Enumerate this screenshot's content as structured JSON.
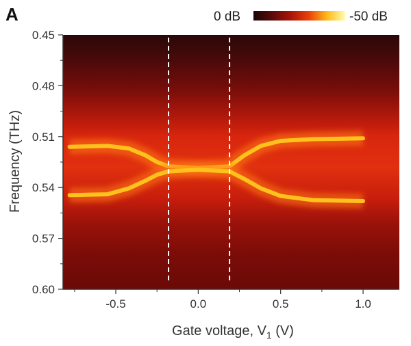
{
  "chart_data": {
    "type": "heatmap",
    "panel_label": "A",
    "xlabel": {
      "main": "Gate voltage, V",
      "subscript": "1",
      "unit": " (V)"
    },
    "ylabel": "Frequency (THz)",
    "xlim": [
      -0.82,
      1.22
    ],
    "ylim": [
      0.45,
      0.6
    ],
    "y_inverted": true,
    "x_ticks": [
      -0.5,
      0.0,
      0.5,
      1.0
    ],
    "x_tick_labels": [
      "-0.5",
      "0.0",
      "0.5",
      "1.0"
    ],
    "x_minor_ticks": [
      -0.75,
      -0.25,
      0.25,
      0.75
    ],
    "y_ticks": [
      0.45,
      0.48,
      0.51,
      0.54,
      0.57,
      0.6
    ],
    "y_tick_labels": [
      "0.45",
      "0.48",
      "0.51",
      "0.54",
      "0.57",
      "0.60"
    ],
    "y_minor_ticks": [
      0.465,
      0.495,
      0.525,
      0.555,
      0.585
    ],
    "colorbar": {
      "min_label": "0 dB",
      "max_label": "-50 dB",
      "colors": [
        "#1a0606",
        "#5a0a0a",
        "#a81408",
        "#e8400a",
        "#ffb818",
        "#ffffb0"
      ]
    },
    "dashed_lines_x": [
      -0.18,
      0.19
    ],
    "anticrossing": {
      "upper_branch": [
        {
          "x": -0.78,
          "y": 0.516
        },
        {
          "x": -0.55,
          "y": 0.5155
        },
        {
          "x": -0.42,
          "y": 0.517
        },
        {
          "x": -0.32,
          "y": 0.521
        },
        {
          "x": -0.25,
          "y": 0.525
        },
        {
          "x": -0.18,
          "y": 0.5275
        },
        {
          "x": 0.0,
          "y": 0.5285
        },
        {
          "x": 0.19,
          "y": 0.5275
        },
        {
          "x": 0.28,
          "y": 0.521
        },
        {
          "x": 0.38,
          "y": 0.5155
        },
        {
          "x": 0.5,
          "y": 0.5125
        },
        {
          "x": 0.7,
          "y": 0.5115
        },
        {
          "x": 1.0,
          "y": 0.511
        }
      ],
      "lower_branch": [
        {
          "x": -0.78,
          "y": 0.5445
        },
        {
          "x": -0.55,
          "y": 0.544
        },
        {
          "x": -0.42,
          "y": 0.5405
        },
        {
          "x": -0.32,
          "y": 0.536
        },
        {
          "x": -0.25,
          "y": 0.5325
        },
        {
          "x": -0.18,
          "y": 0.5305
        },
        {
          "x": 0.0,
          "y": 0.5295
        },
        {
          "x": 0.19,
          "y": 0.5305
        },
        {
          "x": 0.28,
          "y": 0.535
        },
        {
          "x": 0.38,
          "y": 0.5405
        },
        {
          "x": 0.5,
          "y": 0.545
        },
        {
          "x": 0.7,
          "y": 0.5475
        },
        {
          "x": 1.0,
          "y": 0.548
        }
      ]
    },
    "grid": false
  }
}
